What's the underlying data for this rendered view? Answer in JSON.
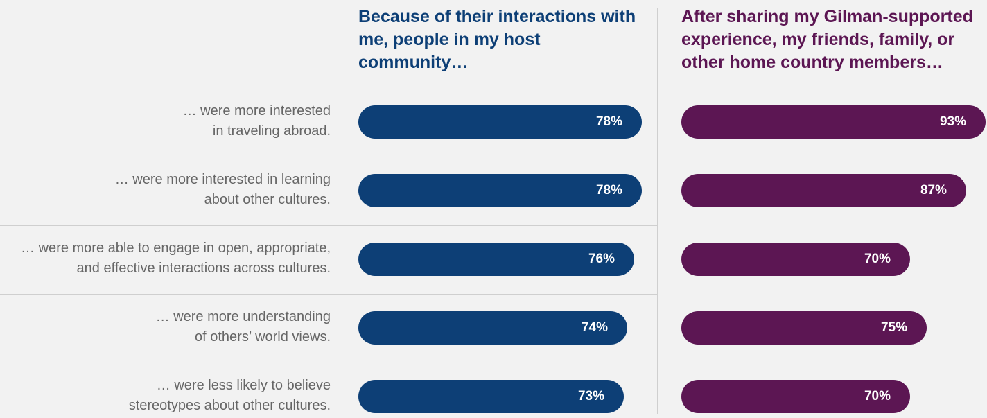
{
  "chart_data": {
    "type": "bar",
    "orientation": "horizontal",
    "colors": {
      "left": "#0d3f76",
      "right": "#5c1653"
    },
    "panels": [
      {
        "key": "left",
        "title": "Because of their interactions with me, people in my host community…"
      },
      {
        "key": "right",
        "title": "After sharing my Gilman-supported experience, my friends, family, or other home country members…"
      }
    ],
    "rows": [
      {
        "label_lines": [
          "… were more interested",
          "in traveling abroad."
        ],
        "left": 78,
        "right": 93
      },
      {
        "label_lines": [
          "… were more interested in learning",
          "about other cultures."
        ],
        "left": 78,
        "right": 87
      },
      {
        "label_lines": [
          "… were more able to engage in open, appropriate,",
          "and effective interactions across cultures."
        ],
        "left": 76,
        "right": 70
      },
      {
        "label_lines": [
          "… were more understanding",
          "of others’ world views."
        ],
        "left": 74,
        "right": 75
      },
      {
        "label_lines": [
          "… were less likely to believe",
          "stereotypes about other cultures."
        ],
        "left": 73,
        "right": 70
      }
    ],
    "value_suffix": "%"
  }
}
